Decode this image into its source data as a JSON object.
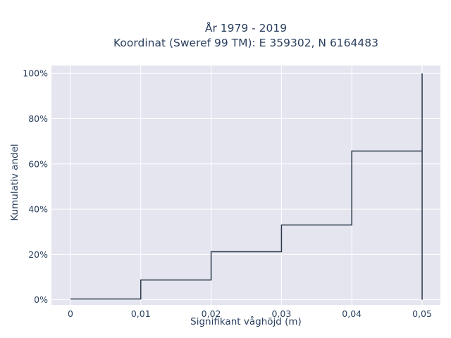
{
  "chart_data": {
    "type": "line",
    "title_line1": "År 1979 - 2019",
    "title_line2": "Koordinat (Sweref 99 TM): E 359302, N 6164483",
    "xlabel": "Signifikant våghöjd (m)",
    "ylabel": "Kumulativ andel",
    "x_ticks": [
      {
        "value": 0,
        "label": "0"
      },
      {
        "value": 0.01,
        "label": "0,01"
      },
      {
        "value": 0.02,
        "label": "0,02"
      },
      {
        "value": 0.03,
        "label": "0,03"
      },
      {
        "value": 0.04,
        "label": "0,04"
      },
      {
        "value": 0.05,
        "label": "0,05"
      }
    ],
    "y_ticks": [
      {
        "value": 0,
        "label": "0%"
      },
      {
        "value": 20,
        "label": "20%"
      },
      {
        "value": 40,
        "label": "40%"
      },
      {
        "value": 60,
        "label": "60%"
      },
      {
        "value": 80,
        "label": "80%"
      },
      {
        "value": 100,
        "label": "100%"
      }
    ],
    "xlim": [
      -0.0027,
      0.0526
    ],
    "ylim": [
      -2.3,
      103.5
    ],
    "grid": true,
    "line_shape": "step",
    "series": [
      {
        "x": [
          0,
          0.01,
          0.01,
          0.02,
          0.02,
          0.03,
          0.03,
          0.04,
          0.04,
          0.05,
          0.05,
          0.05
        ],
        "y": [
          0.3,
          0.3,
          8.7,
          8.7,
          21.2,
          21.2,
          33.0,
          33.0,
          65.7,
          65.7,
          0,
          100
        ]
      }
    ],
    "colors": {
      "line": "#2b3a4a",
      "plot_bg": "#e5e5f0",
      "grid": "#ffffff",
      "text": "#2a3f5f"
    }
  }
}
